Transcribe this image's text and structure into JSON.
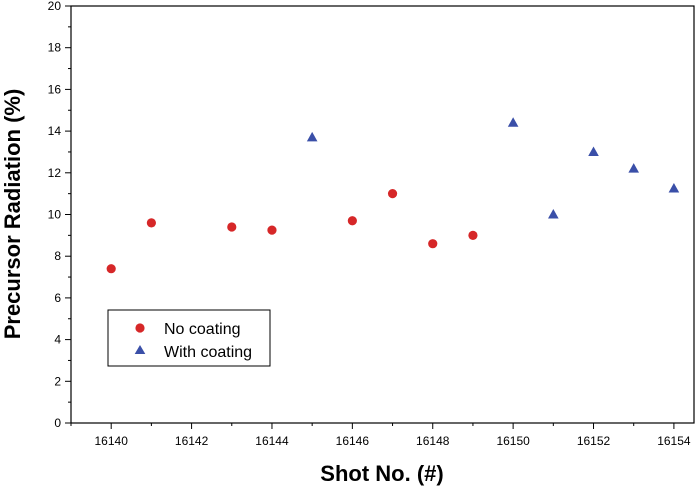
{
  "chart_data": {
    "type": "scatter",
    "xlabel": "Shot No. (#)",
    "ylabel": "Precursor Radiation (%)",
    "xlim": [
      16139,
      16154.5
    ],
    "ylim": [
      0,
      20
    ],
    "x_ticks": [
      16140,
      16142,
      16144,
      16146,
      16148,
      16150,
      16152,
      16154
    ],
    "y_ticks": [
      0,
      2,
      4,
      6,
      8,
      10,
      12,
      14,
      16,
      18,
      20
    ],
    "legend_position": "bottom-left",
    "grid": false,
    "series": [
      {
        "name": "No coating",
        "marker": "circle",
        "color": "#d62728",
        "x": [
          16140,
          16141,
          16143,
          16144,
          16146,
          16147,
          16148,
          16149
        ],
        "y": [
          7.4,
          9.6,
          9.4,
          9.25,
          9.7,
          11.0,
          8.6,
          9.0
        ]
      },
      {
        "name": "With coating",
        "marker": "triangle",
        "color": "#3a4fa8",
        "x": [
          16145,
          16150,
          16151,
          16152,
          16153,
          16154
        ],
        "y": [
          13.7,
          14.4,
          10.0,
          13.0,
          12.2,
          11.25
        ]
      }
    ]
  }
}
